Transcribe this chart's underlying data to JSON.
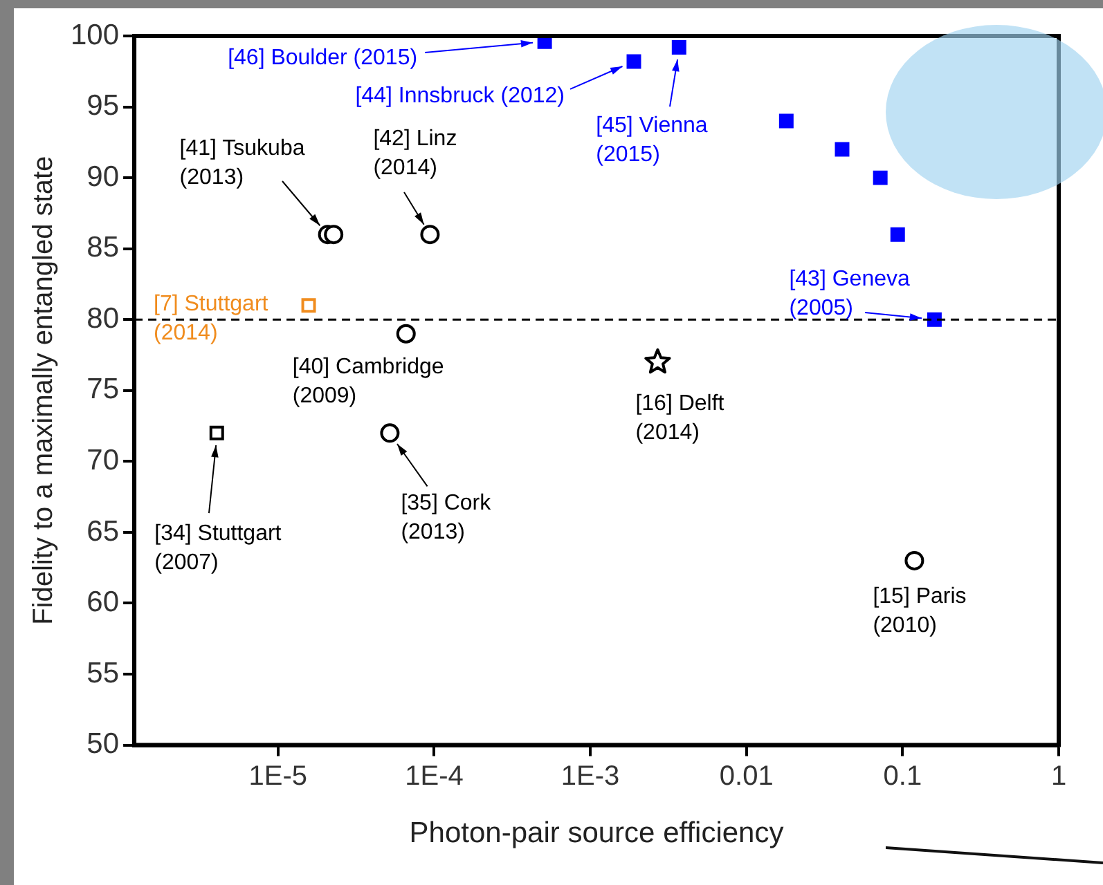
{
  "chart_data": {
    "type": "scatter",
    "xlabel": "Photon-pair source efficiency",
    "ylabel": "Fidelity to a maximally entangled state",
    "log": "x",
    "grid": false,
    "legend": false,
    "xlim": [
      1.2e-06,
      1
    ],
    "xticks": [
      {
        "value": 1e-05,
        "label": "1E-5"
      },
      {
        "value": 0.0001,
        "label": "1E-4"
      },
      {
        "value": 0.001,
        "label": "1E-3"
      },
      0.01,
      0.1,
      1
    ],
    "ylim": [
      50,
      100
    ],
    "yticks": [
      50,
      55,
      60,
      65,
      70,
      75,
      80,
      85,
      90,
      95,
      100
    ],
    "series": [
      {
        "marker": "circle",
        "color": "#000000",
        "x": [
          2.08e-05,
          2.27e-05,
          9.4e-05,
          6.6e-05,
          5.2e-05,
          0.119
        ],
        "values": [
          86,
          86,
          86,
          79,
          72,
          63
        ]
      },
      {
        "marker": "square",
        "color": "#000000",
        "x": [
          4.05e-06
        ],
        "values": [
          72
        ]
      },
      {
        "marker": "star",
        "color": "#000000",
        "x": [
          0.0027
        ],
        "values": [
          77
        ]
      },
      {
        "marker": "square",
        "color": "#f08c1e",
        "x": [
          1.57e-05
        ],
        "values": [
          81
        ]
      },
      {
        "marker": "square",
        "color": "#0000ff",
        "x": [
          0.00051,
          0.0019,
          0.0037,
          0.018,
          0.041,
          0.072,
          0.093,
          0.16
        ],
        "values": [
          99.6,
          98.2,
          99.2,
          94,
          92,
          90,
          86,
          80
        ]
      }
    ],
    "ref_lines": [
      {
        "axis": "y",
        "value": 80,
        "color": "#000000",
        "line_style": "dashed"
      }
    ],
    "annotations": [
      {
        "text": "[46] Boulder (2015)",
        "x": 0.00051,
        "y": 99.6
      },
      {
        "text": "[44] Innsbruck (2012)",
        "x": 0.0019,
        "y": 98.2
      },
      {
        "text": "[45] Vienna\n(2015)",
        "x": 0.0037,
        "y": 99.2
      },
      {
        "text": "[43] Geneva\n(2005)",
        "x": 0.16,
        "y": 80
      },
      {
        "text": "[41] Tsukuba\n(2013)",
        "x": 2.08e-05,
        "y": 86
      },
      {
        "text": "[42] Linz\n(2014)",
        "x": 9.4e-05,
        "y": 86
      },
      {
        "text": "[7] Stuttgart\n(2014)",
        "x": 1.57e-05,
        "y": 81
      },
      {
        "text": "[40] Cambridge\n(2009)",
        "x": 6.6e-05,
        "y": 79
      },
      {
        "text": "[16] Delft\n(2014)",
        "x": 0.0027,
        "y": 77
      },
      {
        "text": "[34] Stuttgart\n(2007)",
        "x": 4.05e-06,
        "y": 72
      },
      {
        "text": "[35] Cork\n(2013)",
        "x": 5.2e-05,
        "y": 72
      },
      {
        "text": "[15] Paris\n(2010)",
        "x": 0.119,
        "y": 63
      }
    ]
  }
}
